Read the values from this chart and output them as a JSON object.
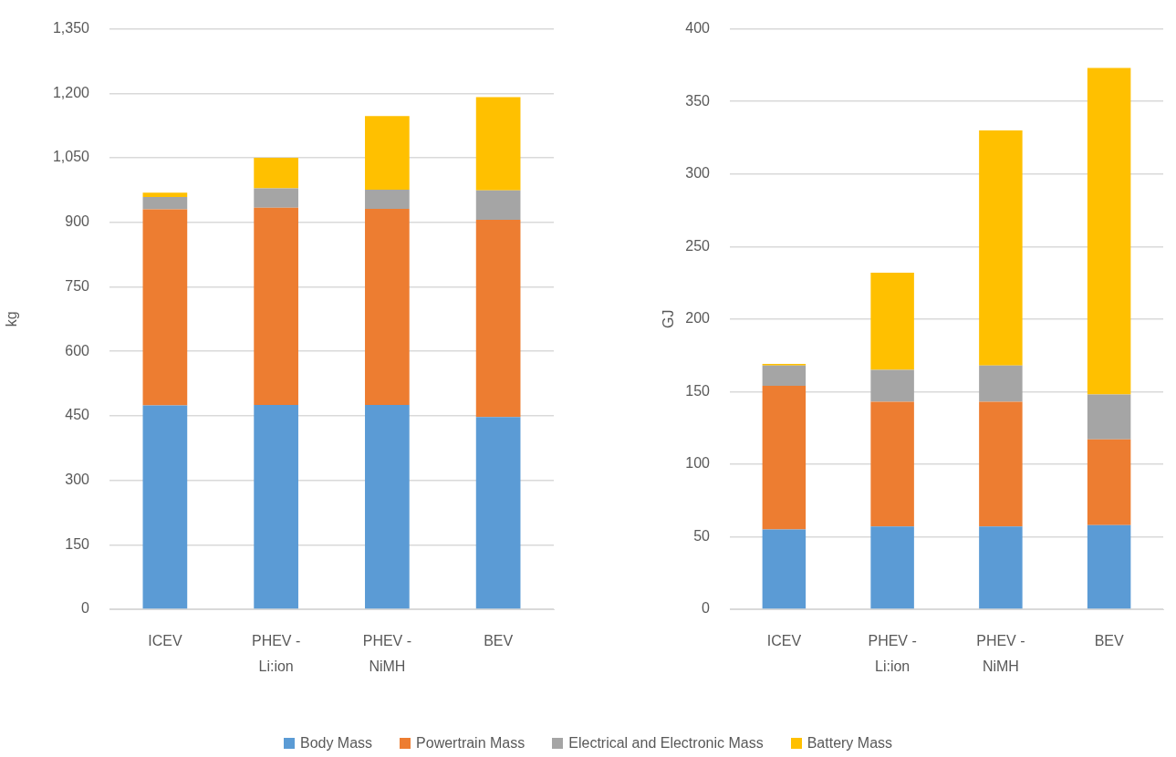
{
  "chart_data": [
    {
      "type": "bar",
      "ylabel": "kg",
      "categories": [
        "ICEV",
        "PHEV - Li:ion",
        "PHEV - NiMH",
        "BEV"
      ],
      "series": [
        {
          "name": "Body Mass",
          "color": "#5b9bd5",
          "values": [
            474,
            475,
            475,
            447
          ]
        },
        {
          "name": "Powertrain Mass",
          "color": "#ed7d31",
          "values": [
            456,
            459,
            456,
            459
          ]
        },
        {
          "name": "Electrical and Electronic Mass",
          "color": "#a5a5a5",
          "values": [
            29,
            45,
            45,
            68
          ]
        },
        {
          "name": "Battery Mass",
          "color": "#ffc000",
          "values": [
            10,
            71,
            171,
            217
          ]
        }
      ],
      "stacked": true,
      "ylim": [
        0,
        1350
      ],
      "yticks": [
        0,
        150,
        300,
        450,
        600,
        750,
        900,
        {
          "value": 1050,
          "label": "1,050"
        },
        {
          "value": 1200,
          "label": "1,200"
        },
        {
          "value": 1350,
          "label": "1,350"
        }
      ],
      "grid": "y",
      "legend": "bottom"
    },
    {
      "type": "bar",
      "ylabel": "GJ",
      "categories": [
        "ICEV",
        "PHEV - Li:ion",
        "PHEV - NiMH",
        "BEV"
      ],
      "series": [
        {
          "color": "#5b9bd5",
          "values": [
            55,
            57,
            57,
            58
          ]
        },
        {
          "color": "#ed7d31",
          "values": [
            99,
            86,
            86,
            59
          ]
        },
        {
          "color": "#a5a5a5",
          "values": [
            14,
            22,
            25,
            31
          ]
        },
        {
          "color": "#ffc000",
          "values": [
            1,
            67,
            162,
            225
          ]
        }
      ],
      "stacked": true,
      "ylim": [
        0,
        400
      ],
      "yticks": [
        0,
        50,
        100,
        150,
        200,
        250,
        300,
        350,
        400
      ],
      "grid": "y"
    }
  ]
}
